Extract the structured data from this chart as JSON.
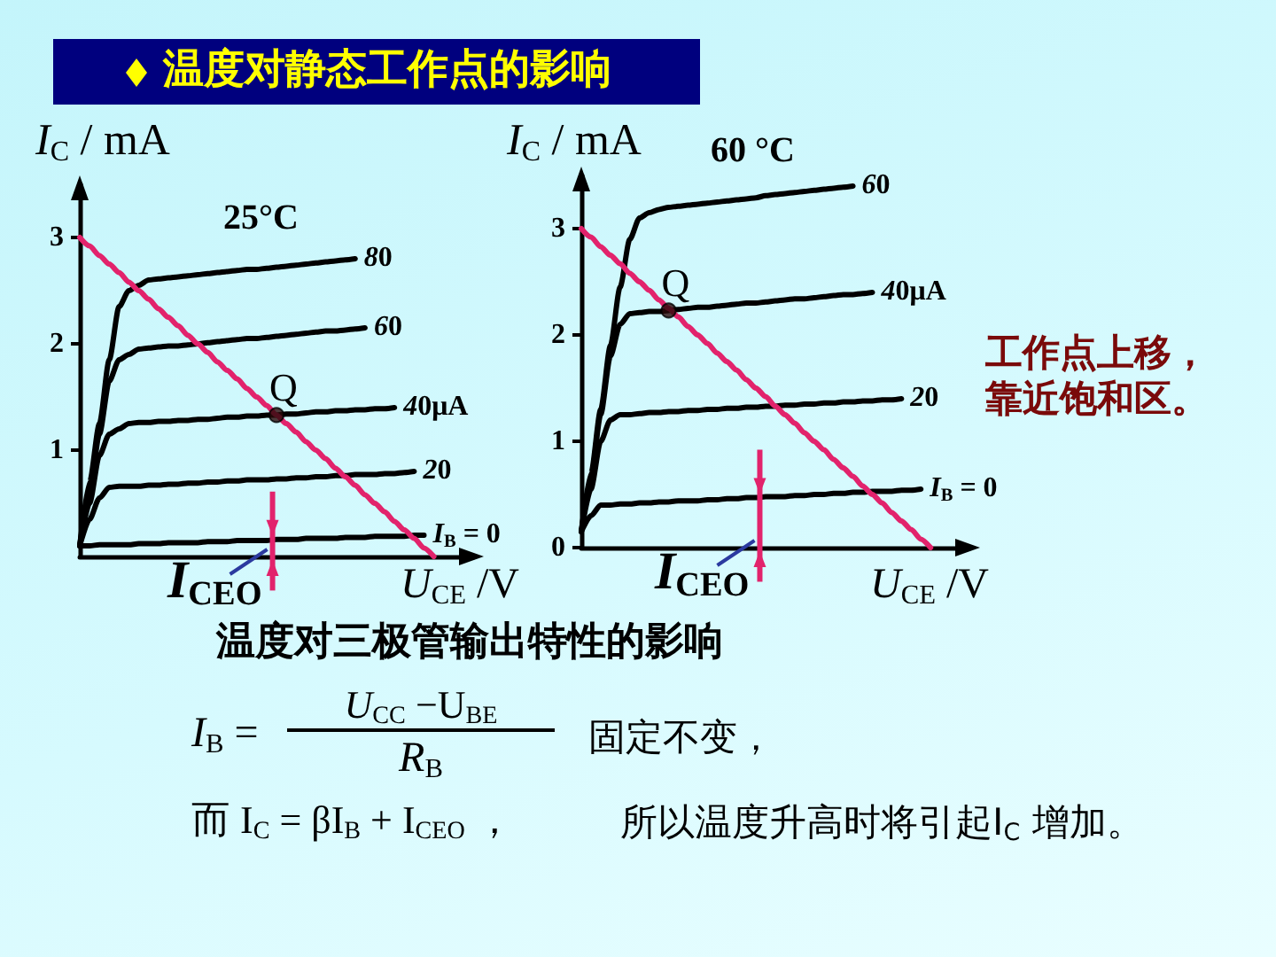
{
  "chart_data": [
    {
      "type": "other",
      "title": "温度对静态工作点的影响"
    },
    {
      "type": "line",
      "title": "25°C",
      "xlabel": "U$_{CE}$ /V",
      "ylabel": "I$_{C}$ / mA",
      "annotations": [
        "I$_{CEO}$",
        {
          "text": "Q",
          "y": 1.33
        }
      ],
      "categories": [
        null,
        null,
        null,
        null,
        null,
        null,
        null,
        null,
        null,
        null,
        null,
        null,
        null,
        null,
        null,
        null,
        null,
        null,
        null,
        null,
        null,
        null,
        null,
        null,
        null,
        null,
        null,
        null,
        null,
        null,
        null,
        null,
        null,
        null,
        null,
        null,
        null,
        null,
        null,
        null,
        null
      ],
      "ylim": [
        0,
        3.5
      ],
      "yticks": [
        1,
        2,
        3
      ],
      "tick_labels": "y",
      "marker": "none",
      "series": [
        {
          "name": "80",
          "color": "#000000",
          "values": [
            0.1,
            0.7,
            1.25,
            1.85,
            2.35,
            2.5,
            2.55,
            2.6,
            2.61,
            2.62,
            2.63,
            2.64,
            2.65,
            2.66,
            2.67,
            2.68,
            2.69,
            2.7,
            2.7,
            2.71,
            2.72,
            2.73,
            2.74,
            2.75,
            2.76,
            2.77,
            2.78,
            2.79,
            2.8,
            null,
            null,
            null,
            null,
            null,
            null,
            null,
            null,
            null,
            null,
            null,
            null
          ]
        },
        {
          "name": "60",
          "color": "#000000",
          "values": [
            0.1,
            0.6,
            1.15,
            1.65,
            1.85,
            1.9,
            1.95,
            1.96,
            1.97,
            1.98,
            1.98,
            1.99,
            2.0,
            2.01,
            2.02,
            2.03,
            2.04,
            2.05,
            2.05,
            2.06,
            2.07,
            2.08,
            2.09,
            2.1,
            2.11,
            2.12,
            2.12,
            2.13,
            2.14,
            2.15,
            null,
            null,
            null,
            null,
            null,
            null,
            null,
            null,
            null,
            null,
            null
          ]
        },
        {
          "name": "40μA",
          "color": "#000000",
          "values": [
            0.1,
            0.5,
            0.95,
            1.15,
            1.2,
            1.25,
            1.26,
            1.26,
            1.27,
            1.27,
            1.28,
            1.28,
            1.29,
            1.29,
            1.3,
            1.31,
            1.31,
            1.32,
            1.32,
            1.33,
            1.33,
            1.34,
            1.34,
            1.35,
            1.36,
            1.36,
            1.37,
            1.37,
            1.38,
            1.38,
            1.39,
            1.39,
            1.4,
            null,
            null,
            null,
            null,
            null,
            null,
            null,
            null
          ]
        },
        {
          "name": "20",
          "color": "#000000",
          "values": [
            0.1,
            0.35,
            0.55,
            0.65,
            0.66,
            0.66,
            0.66,
            0.67,
            0.67,
            0.68,
            0.68,
            0.69,
            0.69,
            0.7,
            0.7,
            0.71,
            0.71,
            0.72,
            0.72,
            0.72,
            0.73,
            0.73,
            0.74,
            0.74,
            0.75,
            0.75,
            0.76,
            0.76,
            0.77,
            0.77,
            0.77,
            0.78,
            0.78,
            0.79,
            0.8,
            null,
            null,
            null,
            null,
            null,
            null
          ]
        },
        {
          "name": "I$_{B}$ = 0",
          "color": "#000000",
          "values": [
            0.1,
            0.1,
            0.11,
            0.11,
            0.11,
            0.11,
            0.12,
            0.12,
            0.12,
            0.13,
            0.13,
            0.13,
            0.13,
            0.14,
            0.14,
            0.14,
            0.15,
            0.15,
            0.15,
            0.15,
            0.16,
            0.16,
            0.16,
            0.17,
            0.17,
            0.17,
            0.17,
            0.18,
            0.18,
            0.18,
            0.19,
            0.19,
            0.19,
            0.19,
            0.2,
            0.2,
            null,
            null,
            null,
            null,
            null
          ]
        },
        {
          "color": "#e2236c",
          "values": [
            3.0,
            2.92,
            2.83,
            2.75,
            2.67,
            2.58,
            2.5,
            2.42,
            2.33,
            2.25,
            2.17,
            2.08,
            2.0,
            1.92,
            1.83,
            1.75,
            1.67,
            1.58,
            1.5,
            1.42,
            1.33,
            1.25,
            1.17,
            1.08,
            1.0,
            0.92,
            0.83,
            0.75,
            0.67,
            0.58,
            0.5,
            0.42,
            0.33,
            0.25,
            0.17,
            0.08,
            0,
            null,
            null,
            null,
            null
          ]
        }
      ]
    },
    {
      "type": "line",
      "title": "60 °C",
      "xlabel": "U$_{CE}$ /V",
      "ylabel": "I$_{C}$ / mA",
      "annotations": [
        "I$_{CEO}$",
        {
          "text": "Q",
          "y": 2.23
        },
        "工作点上移，靠近饱和区。"
      ],
      "categories": [
        null,
        null,
        null,
        null,
        null,
        null,
        null,
        null,
        null,
        null,
        null,
        null,
        null,
        null,
        null,
        null,
        null,
        null,
        null,
        null,
        null,
        null,
        null,
        null,
        null,
        null,
        null,
        null,
        null,
        null,
        null,
        null,
        null,
        null,
        null,
        null,
        null,
        null,
        null,
        null,
        null
      ],
      "ylim": [
        0,
        3.5
      ],
      "yticks": [
        0,
        1,
        2,
        3
      ],
      "tick_labels": "y",
      "marker": "none",
      "series": [
        {
          "name": "60",
          "color": "#000000",
          "values": [
            0.15,
            0.7,
            1.3,
            1.9,
            2.45,
            2.9,
            3.1,
            3.15,
            3.18,
            3.2,
            3.21,
            3.22,
            3.23,
            3.24,
            3.25,
            3.26,
            3.27,
            3.28,
            3.29,
            3.31,
            3.32,
            3.33,
            3.34,
            3.35,
            3.36,
            3.37,
            3.38,
            3.39,
            3.4,
            null,
            null,
            null,
            null,
            null,
            null,
            null,
            null,
            null,
            null,
            null,
            null
          ]
        },
        {
          "name": "40μA",
          "color": "#000000",
          "values": [
            0.15,
            0.65,
            1.25,
            1.8,
            2.1,
            2.2,
            2.21,
            2.22,
            2.22,
            2.23,
            2.24,
            2.25,
            2.26,
            2.26,
            2.27,
            2.28,
            2.29,
            2.3,
            2.3,
            2.31,
            2.32,
            2.33,
            2.34,
            2.34,
            2.35,
            2.36,
            2.37,
            2.38,
            2.38,
            2.39,
            2.4,
            null,
            null,
            null,
            null,
            null,
            null,
            null,
            null,
            null,
            null
          ]
        },
        {
          "name": "20",
          "color": "#000000",
          "values": [
            0.15,
            0.55,
            1.0,
            1.2,
            1.25,
            1.25,
            1.26,
            1.27,
            1.27,
            1.28,
            1.28,
            1.29,
            1.29,
            1.3,
            1.3,
            1.31,
            1.31,
            1.32,
            1.32,
            1.33,
            1.33,
            1.34,
            1.34,
            1.35,
            1.35,
            1.36,
            1.36,
            1.37,
            1.37,
            1.38,
            1.38,
            1.39,
            1.39,
            1.4,
            null,
            null,
            null,
            null,
            null,
            null,
            null
          ]
        },
        {
          "name": "I$_{B}$ = 0",
          "color": "#000000",
          "values": [
            0.15,
            0.3,
            0.4,
            0.4,
            0.41,
            0.41,
            0.42,
            0.42,
            0.43,
            0.43,
            0.44,
            0.44,
            0.44,
            0.45,
            0.45,
            0.46,
            0.46,
            0.47,
            0.47,
            0.48,
            0.48,
            0.48,
            0.49,
            0.49,
            0.5,
            0.5,
            0.51,
            0.51,
            0.52,
            0.52,
            0.53,
            0.53,
            0.53,
            0.54,
            0.54,
            0.55,
            null,
            null,
            null,
            null,
            null
          ]
        },
        {
          "color": "#e2236c",
          "values": [
            3.0,
            2.92,
            2.83,
            2.75,
            2.67,
            2.58,
            2.5,
            2.42,
            2.33,
            2.25,
            2.17,
            2.08,
            2.0,
            1.92,
            1.83,
            1.75,
            1.67,
            1.58,
            1.5,
            1.42,
            1.33,
            1.25,
            1.17,
            1.08,
            1.0,
            0.92,
            0.83,
            0.75,
            0.67,
            0.58,
            0.5,
            0.42,
            0.33,
            0.25,
            0.17,
            0.08,
            0,
            null,
            null,
            null,
            null
          ]
        }
      ]
    },
    {
      "type": "other",
      "title": "温度对三极管输出特性的影响",
      "annotations": [
        "I$_{B}$ =",
        "U$_{CC}$ −U$_{BE}$",
        "R$_{B}$",
        "固定不变，",
        "而 I$_{C}$ = βI$_{B}$ + I$_{CEO}$ ，",
        "所以温度升高时将引起I$_{C}$ 增加。"
      ]
    }
  ]
}
